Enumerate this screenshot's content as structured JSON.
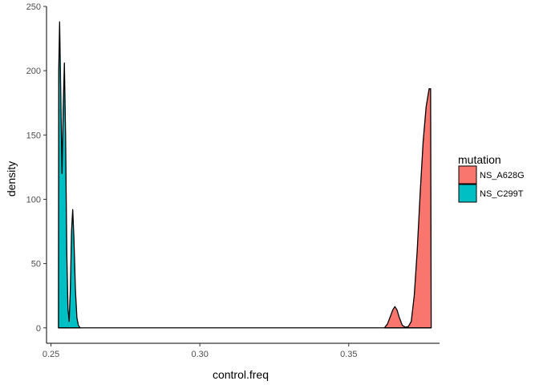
{
  "chart_data": {
    "type": "area",
    "title": "",
    "xlabel": "control.freq",
    "ylabel": "density",
    "xlim": [
      0.2485,
      0.3805
    ],
    "ylim": [
      -12,
      250
    ],
    "x_ticks": [
      0.25,
      0.3,
      0.35
    ],
    "x_tick_labels": [
      "0.25",
      "0.30",
      "0.35"
    ],
    "y_ticks": [
      0,
      50,
      100,
      150,
      200,
      250
    ],
    "y_tick_labels": [
      "0",
      "50",
      "100",
      "150",
      "200",
      "250"
    ],
    "grid": false,
    "legend": {
      "title": "mutation",
      "placement": "right",
      "entries": [
        "NS_A628G",
        "NS_C299T"
      ]
    },
    "series": [
      {
        "name": "NS_A628G",
        "color": "#F8766D",
        "points": [
          [
            0.362,
            0
          ],
          [
            0.363,
            3
          ],
          [
            0.364,
            9
          ],
          [
            0.3648,
            14
          ],
          [
            0.3655,
            16.5
          ],
          [
            0.3662,
            14
          ],
          [
            0.367,
            8
          ],
          [
            0.368,
            2
          ],
          [
            0.369,
            0.5
          ],
          [
            0.37,
            1
          ],
          [
            0.371,
            5
          ],
          [
            0.372,
            25
          ],
          [
            0.373,
            60
          ],
          [
            0.374,
            105
          ],
          [
            0.375,
            145
          ],
          [
            0.376,
            172
          ],
          [
            0.377,
            186
          ],
          [
            0.3775,
            186
          ],
          [
            0.3777,
            0
          ]
        ]
      },
      {
        "name": "NS_C299T",
        "color": "#00BFC4",
        "points": [
          [
            0.2525,
            0
          ],
          [
            0.2526,
            200
          ],
          [
            0.2529,
            238
          ],
          [
            0.2533,
            180
          ],
          [
            0.2537,
            120
          ],
          [
            0.2541,
            170
          ],
          [
            0.2545,
            206
          ],
          [
            0.2549,
            150
          ],
          [
            0.2553,
            60
          ],
          [
            0.2557,
            15
          ],
          [
            0.2561,
            5
          ],
          [
            0.2565,
            30
          ],
          [
            0.2569,
            75
          ],
          [
            0.2573,
            92
          ],
          [
            0.2577,
            70
          ],
          [
            0.2582,
            30
          ],
          [
            0.2587,
            8
          ],
          [
            0.2592,
            2
          ],
          [
            0.2598,
            0
          ]
        ]
      }
    ]
  }
}
